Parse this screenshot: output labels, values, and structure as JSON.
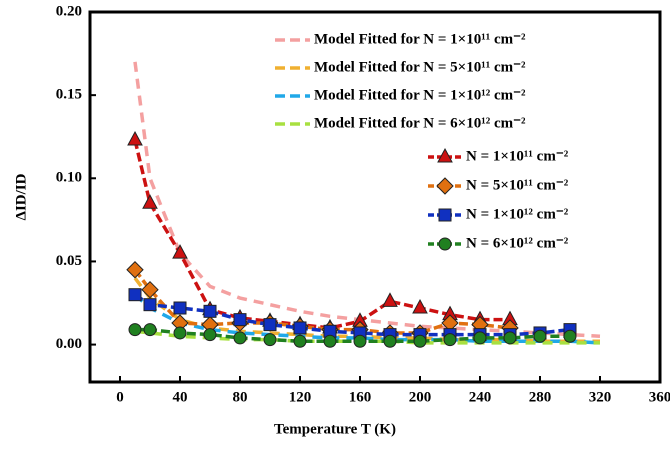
{
  "chart_data": {
    "type": "line",
    "xlabel": "Temperature T (K)",
    "ylabel": "ΔID/ID",
    "xlim": [
      -20,
      360
    ],
    "ylim": [
      -0.0225,
      0.2
    ],
    "xticks": [
      0,
      40,
      80,
      120,
      160,
      200,
      240,
      280,
      320,
      360
    ],
    "yticks": [
      {
        "value": 0,
        "label": "0.00"
      },
      {
        "value": 0.05,
        "label": "0.05"
      },
      {
        "value": 0.1,
        "label": "0.10"
      },
      {
        "value": 0.15,
        "label": "0.15"
      },
      {
        "value": 0.2,
        "label": "0.20"
      }
    ],
    "legend": "upper right",
    "series": [
      {
        "name": "Model Fitted for N = 1×10¹¹ cm⁻²",
        "color": "#f4a0a0",
        "style": "model",
        "x": [
          10,
          20,
          40,
          60,
          80,
          100,
          120,
          140,
          160,
          180,
          200,
          220,
          240,
          260,
          280,
          300,
          320
        ],
        "values": [
          0.17,
          0.1,
          0.055,
          0.035,
          0.028,
          0.024,
          0.02,
          0.017,
          0.015,
          0.013,
          0.011,
          0.01,
          0.009,
          0.008,
          0.007,
          0.006,
          0.005
        ]
      },
      {
        "name": "Model Fitted for N = 5×10¹¹ cm⁻²",
        "color": "#f0b030",
        "style": "model",
        "x": [
          10,
          20,
          40,
          60,
          80,
          100,
          120,
          140,
          160,
          180,
          200,
          220,
          240,
          260,
          280,
          300,
          320
        ],
        "values": [
          0.04,
          0.028,
          0.015,
          0.01,
          0.008,
          0.007,
          0.006,
          0.005,
          0.005,
          0.004,
          0.004,
          0.003,
          0.003,
          0.003,
          0.002,
          0.002,
          0.002
        ]
      },
      {
        "name": "Model Fitted for N = 1×10¹² cm⁻²",
        "color": "#20a8e8",
        "style": "model",
        "x": [
          10,
          20,
          40,
          60,
          80,
          100,
          120,
          140,
          160,
          180,
          200,
          220,
          240,
          260,
          280,
          300,
          320
        ],
        "values": [
          0.03,
          0.022,
          0.013,
          0.009,
          0.007,
          0.006,
          0.005,
          0.004,
          0.004,
          0.003,
          0.003,
          0.003,
          0.002,
          0.002,
          0.002,
          0.002,
          0.001
        ]
      },
      {
        "name": "Model Fitted for N = 6×10¹² cm⁻²",
        "color": "#a8e040",
        "style": "model",
        "x": [
          10,
          20,
          40,
          60,
          80,
          100,
          120,
          140,
          160,
          180,
          200,
          220,
          240,
          260,
          280,
          300,
          320
        ],
        "values": [
          0.008,
          0.007,
          0.005,
          0.004,
          0.003,
          0.003,
          0.002,
          0.002,
          0.002,
          0.002,
          0.001,
          0.001,
          0.001,
          0.001,
          0.001,
          0.001,
          0.001
        ]
      },
      {
        "name": "N = 1×10¹¹ cm⁻²",
        "color": "#cc1111",
        "marker": "triangle",
        "x": [
          10,
          20,
          40,
          60,
          80,
          100,
          120,
          140,
          160,
          180,
          200,
          220,
          240,
          260
        ],
        "values": [
          0.123,
          0.085,
          0.055,
          0.021,
          0.016,
          0.014,
          0.012,
          0.01,
          0.014,
          0.026,
          0.022,
          0.018,
          0.015,
          0.015
        ]
      },
      {
        "name": "N = 5×10¹¹ cm⁻²",
        "color": "#e07010",
        "marker": "diamond",
        "x": [
          10,
          20,
          40,
          60,
          80,
          100,
          120,
          140,
          160,
          180,
          200,
          220,
          240,
          260
        ],
        "values": [
          0.045,
          0.033,
          0.013,
          0.012,
          0.013,
          0.013,
          0.011,
          0.009,
          0.009,
          0.007,
          0.007,
          0.013,
          0.012,
          0.01
        ]
      },
      {
        "name": "N = 1×10¹² cm⁻²",
        "color": "#1030c0",
        "marker": "square",
        "x": [
          10,
          20,
          40,
          60,
          80,
          100,
          120,
          140,
          160,
          180,
          200,
          220,
          240,
          260,
          280,
          300
        ],
        "values": [
          0.03,
          0.024,
          0.022,
          0.02,
          0.015,
          0.012,
          0.01,
          0.008,
          0.007,
          0.006,
          0.006,
          0.006,
          0.006,
          0.006,
          0.007,
          0.009
        ]
      },
      {
        "name": "N = 6×10¹² cm⁻²",
        "color": "#208020",
        "marker": "circle",
        "x": [
          10,
          20,
          40,
          60,
          80,
          100,
          120,
          140,
          160,
          180,
          200,
          220,
          240,
          260,
          280,
          300
        ],
        "values": [
          0.009,
          0.009,
          0.007,
          0.006,
          0.004,
          0.003,
          0.002,
          0.002,
          0.002,
          0.002,
          0.002,
          0.003,
          0.004,
          0.004,
          0.005,
          0.005
        ]
      }
    ]
  }
}
